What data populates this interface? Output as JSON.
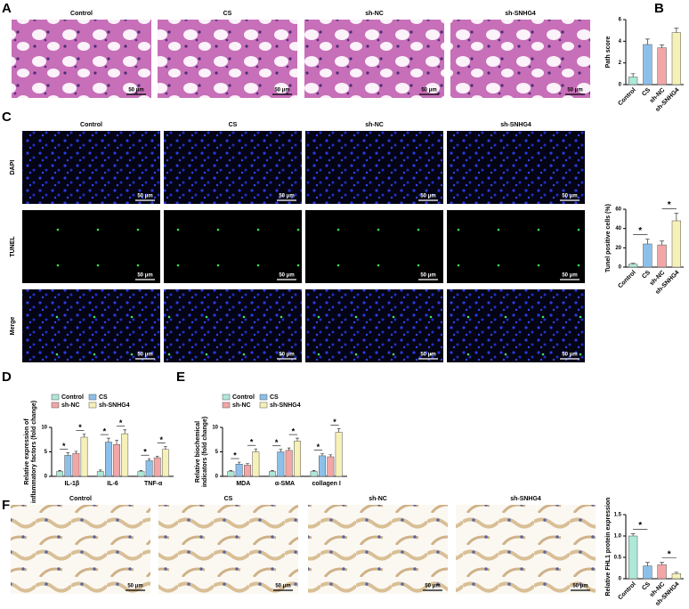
{
  "panels": {
    "letters": [
      "A",
      "B",
      "C",
      "D",
      "E",
      "F"
    ]
  },
  "he_images": {
    "columns": [
      "Control",
      "CS",
      "sh-NC",
      "sh-SNHG4"
    ],
    "scale_bar": "50 μm"
  },
  "tunel_images": {
    "columns": [
      "Control",
      "CS",
      "sh-NC",
      "sh-SNHG4"
    ],
    "rows": [
      "DAPI",
      "TUNEL",
      "Merge"
    ],
    "scale_bar": "50 μm"
  },
  "ihc_images": {
    "columns": [
      "Control",
      "CS",
      "sh-NC",
      "sh-SNHG4"
    ],
    "scale_bar": "50 μm"
  },
  "chart_data": [
    {
      "type": "bar",
      "ylabel": "Path score",
      "categories": [
        "Control",
        "CS",
        "sh-NC",
        "sh-SNHG4"
      ],
      "values": [
        0.7,
        3.7,
        3.4,
        4.8
      ],
      "errors": [
        0.3,
        0.5,
        0.25,
        0.4
      ],
      "colors": [
        "#aee8d8",
        "#8cc0ea",
        "#f2a6a6",
        "#f6f1b8"
      ],
      "ylim": [
        0,
        6
      ],
      "yticks": [
        0,
        2,
        4,
        6
      ]
    },
    {
      "type": "bar",
      "ylabel": "Tunel positive cells (%)",
      "categories": [
        "Control",
        "CS",
        "sh-NC",
        "sh-SNHG4"
      ],
      "values": [
        3,
        24,
        23,
        48
      ],
      "errors": [
        1,
        5,
        4,
        8
      ],
      "annotations": [
        "*",
        "*"
      ],
      "colors": [
        "#aee8d8",
        "#8cc0ea",
        "#f2a6a6",
        "#f6f1b8"
      ],
      "ylim": [
        0,
        60
      ],
      "yticks": [
        0,
        20,
        40,
        60
      ]
    },
    {
      "type": "bar",
      "ylabel": [
        "Relative expression of",
        "inflammatory factors (fold change)"
      ],
      "categories": [
        "IL-1β",
        "IL-6",
        "TNF-α"
      ],
      "series": [
        {
          "name": "Control",
          "color": "#aee8d8",
          "values": [
            1,
            1,
            1
          ],
          "errors": [
            0.2,
            0.3,
            0.2
          ]
        },
        {
          "name": "CS",
          "color": "#8cc0ea",
          "values": [
            4.3,
            7,
            3.2
          ],
          "errors": [
            0.5,
            0.8,
            0.4
          ]
        },
        {
          "name": "sh-NC",
          "color": "#f2a6a6",
          "values": [
            4.7,
            6.5,
            3.8
          ],
          "errors": [
            0.4,
            0.9,
            0.3
          ]
        },
        {
          "name": "sh-SNHG4",
          "color": "#f6f1b8",
          "values": [
            8,
            8.7,
            5.5
          ],
          "errors": [
            0.6,
            0.8,
            0.6
          ]
        }
      ],
      "annotations": [
        "*",
        "*",
        "*",
        "*",
        "*",
        "*"
      ],
      "ylim": [
        0,
        10
      ],
      "yticks": [
        0,
        5,
        10
      ]
    },
    {
      "type": "bar",
      "ylabel": [
        "Relative biochemical",
        "indicators (fold change)"
      ],
      "categories": [
        "MDA",
        "α-SMA",
        "collagen I"
      ],
      "series": [
        {
          "name": "Control",
          "color": "#aee8d8",
          "values": [
            1,
            1,
            1
          ],
          "errors": [
            0.2,
            0.2,
            0.2
          ]
        },
        {
          "name": "CS",
          "color": "#8cc0ea",
          "values": [
            2.5,
            5,
            4.2
          ],
          "errors": [
            0.4,
            0.5,
            0.4
          ]
        },
        {
          "name": "sh-NC",
          "color": "#f2a6a6",
          "values": [
            2.3,
            5.3,
            4
          ],
          "errors": [
            0.3,
            0.5,
            0.4
          ]
        },
        {
          "name": "sh-SNHG4",
          "color": "#f6f1b8",
          "values": [
            5,
            7.2,
            9
          ],
          "errors": [
            0.6,
            0.6,
            0.7
          ]
        }
      ],
      "annotations": [
        "*",
        "*",
        "*",
        "*",
        "*",
        "*"
      ],
      "ylim": [
        0,
        10
      ],
      "yticks": [
        0,
        5,
        10
      ]
    },
    {
      "type": "bar",
      "ylabel": "Relative FHL1 protein expression",
      "categories": [
        "Control",
        "CS",
        "sh-NC",
        "sh-SNHG4"
      ],
      "values": [
        1,
        0.3,
        0.33,
        0.12
      ],
      "errors": [
        0.05,
        0.08,
        0.05,
        0.03
      ],
      "annotations": [
        "*",
        "*"
      ],
      "colors": [
        "#aee8d8",
        "#8cc0ea",
        "#f2a6a6",
        "#f6f1b8"
      ],
      "ylim": [
        0,
        1.5
      ],
      "yticks": [
        0,
        0.5,
        {
          "value": 1,
          "label": "1.0"
        },
        1.5
      ]
    }
  ]
}
